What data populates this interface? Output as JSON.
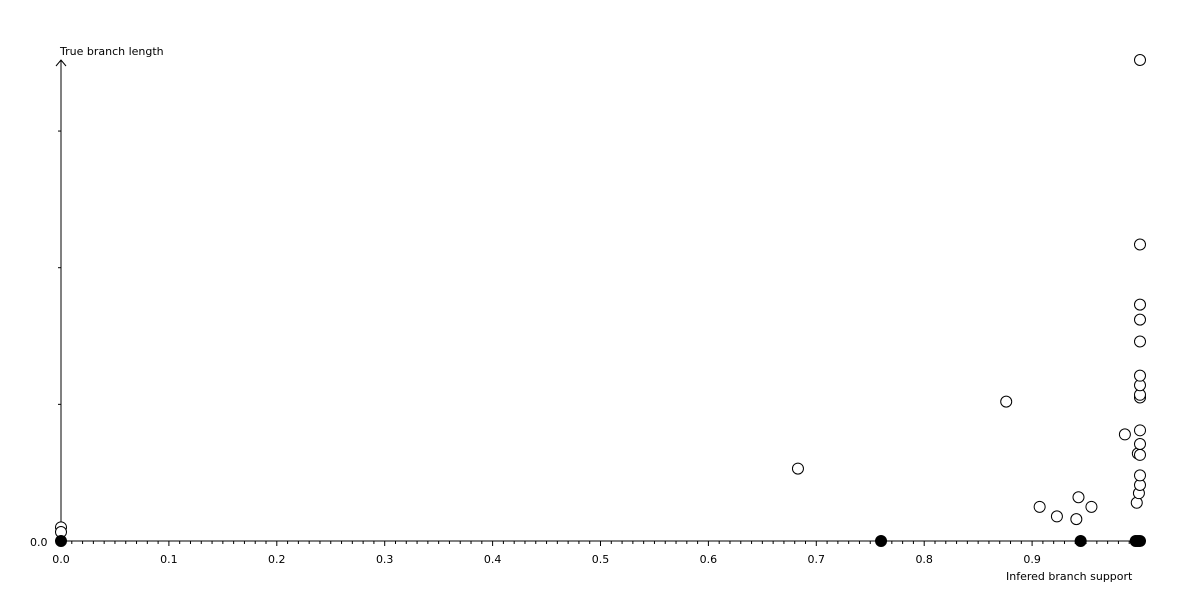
{
  "chart_data": {
    "type": "scatter",
    "title": "",
    "xlabel": "Infered branch support",
    "ylabel": "True branch length",
    "xlim": [
      0,
      1.0
    ],
    "x_ticks": [
      "0.0",
      "0.1",
      "0.2",
      "0.3",
      "0.4",
      "0.5",
      "0.6",
      "0.7",
      "0.8",
      "0.9"
    ],
    "x_tick_values": [
      0,
      0.1,
      0.2,
      0.3,
      0.4,
      0.5,
      0.6,
      0.7,
      0.8,
      0.9
    ],
    "y_origin_label": "0.0",
    "y_ticks_unlabeled": [
      1,
      2,
      3
    ],
    "ylim": [
      0,
      3.52
    ],
    "grid": false,
    "series": [
      {
        "marker": "open-circle",
        "color": "#000000",
        "points": [
          [
            0,
            0.1
          ],
          [
            0,
            0.066
          ],
          [
            0.683,
            0.53
          ],
          [
            0.876,
            1.02
          ],
          [
            0.907,
            0.25
          ],
          [
            0.923,
            0.18
          ],
          [
            0.941,
            0.16
          ],
          [
            0.943,
            0.32
          ],
          [
            0.955,
            0.25
          ],
          [
            0.986,
            0.78
          ],
          [
            0.997,
            0.28
          ],
          [
            0.998,
            0.64
          ],
          [
            0.999,
            0.35
          ],
          [
            1.0,
            0.41
          ],
          [
            1.0,
            0.48
          ],
          [
            1.0,
            0.63
          ],
          [
            1.0,
            0.71
          ],
          [
            1.0,
            0.81
          ],
          [
            1.0,
            1.05
          ],
          [
            1.0,
            1.07
          ],
          [
            1.0,
            1.14
          ],
          [
            1.0,
            1.21
          ],
          [
            1.0,
            1.46
          ],
          [
            1.0,
            1.62
          ],
          [
            1.0,
            1.73
          ],
          [
            1.0,
            2.17
          ],
          [
            1.0,
            3.52
          ]
        ]
      },
      {
        "marker": "filled-circle",
        "color": "#000000",
        "points": [
          [
            0,
            0
          ],
          [
            0.76,
            0
          ],
          [
            0.945,
            0
          ],
          [
            0.996,
            0
          ],
          [
            0.998,
            0
          ],
          [
            1.0,
            0
          ]
        ]
      }
    ]
  }
}
